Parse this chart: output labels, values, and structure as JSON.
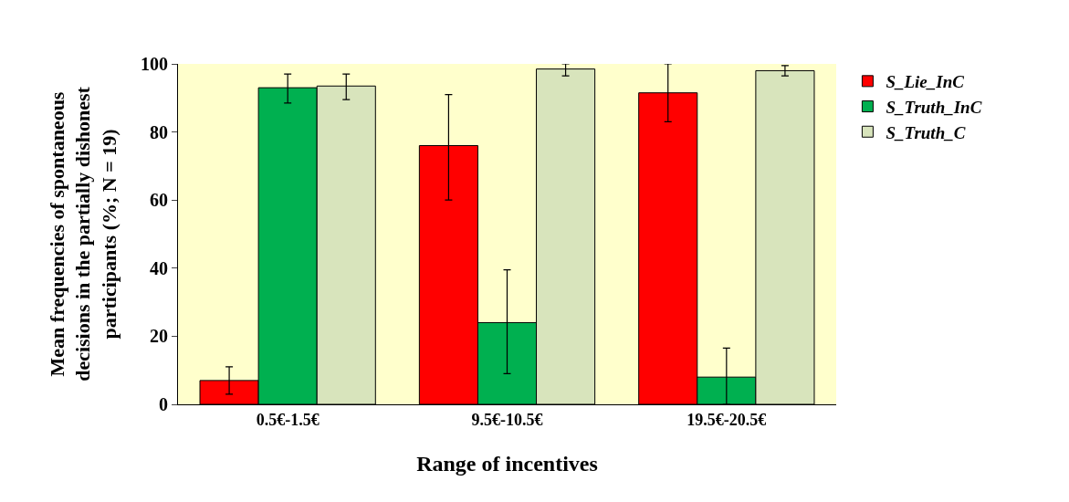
{
  "chart_data": {
    "type": "bar",
    "xlabel": "Range of incentives",
    "ylabel": "Mean frequencies of spontaneous decisions in the partially dishonest participants (%; N = 19)",
    "categories": [
      "0.5€-1.5€",
      "9.5€-10.5€",
      "19.5€-20.5€"
    ],
    "series": [
      {
        "name": "S_Lie_InC",
        "color": "#ff0000",
        "values": [
          7,
          76,
          91.5
        ],
        "errors": [
          [
            3,
            11
          ],
          [
            60,
            91
          ],
          [
            83,
            100
          ]
        ]
      },
      {
        "name": "S_Truth_InC",
        "color": "#00b050",
        "values": [
          93,
          24,
          8
        ],
        "errors": [
          [
            88.5,
            97
          ],
          [
            9,
            39.5
          ],
          [
            0,
            16.5
          ]
        ]
      },
      {
        "name": "S_Truth_C",
        "color": "#d8e4bc",
        "values": [
          93.5,
          98.5,
          98
        ],
        "errors": [
          [
            89.5,
            97
          ],
          [
            96.5,
            100
          ],
          [
            96.5,
            99.5
          ]
        ]
      }
    ],
    "ylim": [
      0,
      100
    ],
    "yticks": [
      0,
      20,
      40,
      60,
      80,
      100
    ],
    "grid": false,
    "legend": "top right"
  }
}
